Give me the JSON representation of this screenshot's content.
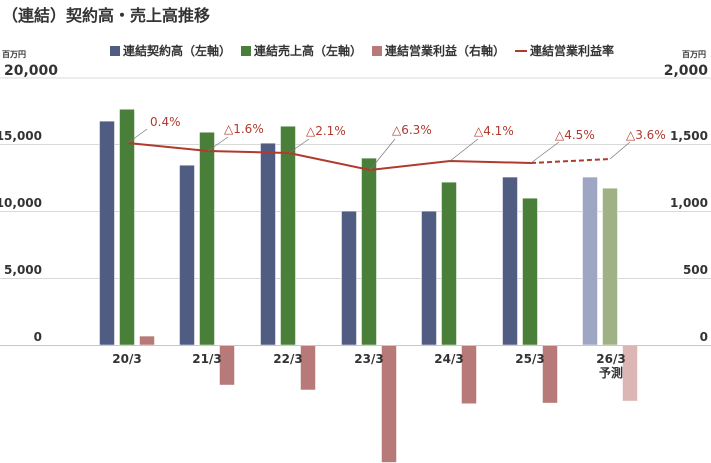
{
  "title": "（連結）契約高・売上高推移",
  "left_unit": "百万円",
  "right_unit": "百万円",
  "legend": [
    {
      "label": "連結契約高（左軸）",
      "color": "#515c82",
      "type": "bar"
    },
    {
      "label": "連結売上高（左軸）",
      "color": "#4a7f3a",
      "type": "bar"
    },
    {
      "label": "連結営業利益（右軸）",
      "color": "#b77a79",
      "type": "bar"
    },
    {
      "label": "連結営業利益率",
      "color": "#b03a2e",
      "type": "line"
    }
  ],
  "chart_data": {
    "type": "bar",
    "title": "（連結）契約高・売上高推移",
    "categories": [
      "20/3",
      "21/3",
      "22/3",
      "23/3",
      "24/3",
      "25/3",
      "26/3 予測"
    ],
    "series": [
      {
        "name": "連結契約高（左軸）",
        "axis": "left",
        "values": [
          16770,
          13470,
          15120,
          10030,
          10030,
          12580,
          12580
        ]
      },
      {
        "name": "連結売上高（左軸）",
        "axis": "left",
        "values": [
          17660,
          15940,
          16390,
          14000,
          12200,
          11000,
          11750
        ]
      },
      {
        "name": "連結営業利益（右軸）",
        "axis": "right",
        "values": [
          67,
          -300,
          -337,
          -880,
          -440,
          -435,
          -420
        ]
      },
      {
        "name": "連結営業利益率",
        "type": "line",
        "values": [
          0.4,
          -1.6,
          -2.1,
          -6.3,
          -4.1,
          -4.5,
          -3.6
        ],
        "labels": [
          "0.4%",
          "△1.6%",
          "△2.1%",
          "△6.3%",
          "△4.1%",
          "△4.5%",
          "△3.6%"
        ]
      }
    ],
    "left_axis": {
      "ticks": [
        "0",
        "5,000",
        "10,000",
        "15,000",
        "20,000"
      ],
      "ylim": [
        0,
        20000
      ],
      "unit": "百万円"
    },
    "right_axis": {
      "ticks": [
        "0",
        "500",
        "1,000",
        "1,500",
        "2,000"
      ],
      "ylim": [
        0,
        2000
      ],
      "unit": "百万円"
    },
    "forecast_category": "26/3 予測",
    "grid": true,
    "legend_position": "top"
  },
  "x_labels": [
    "20/3",
    "21/3",
    "22/3",
    "23/3",
    "24/3",
    "25/3",
    "26/3"
  ],
  "forecast_sublabel": "予測",
  "left_ticks": [
    "20,000",
    "15,000",
    "10,000",
    "5,000",
    "0"
  ],
  "right_ticks": [
    "2,000",
    "1,500",
    "1,000",
    "500",
    "0"
  ],
  "margin_labels": [
    "0.4%",
    "△1.6%",
    "△2.1%",
    "△6.3%",
    "△4.1%",
    "△4.5%",
    "△3.6%"
  ]
}
